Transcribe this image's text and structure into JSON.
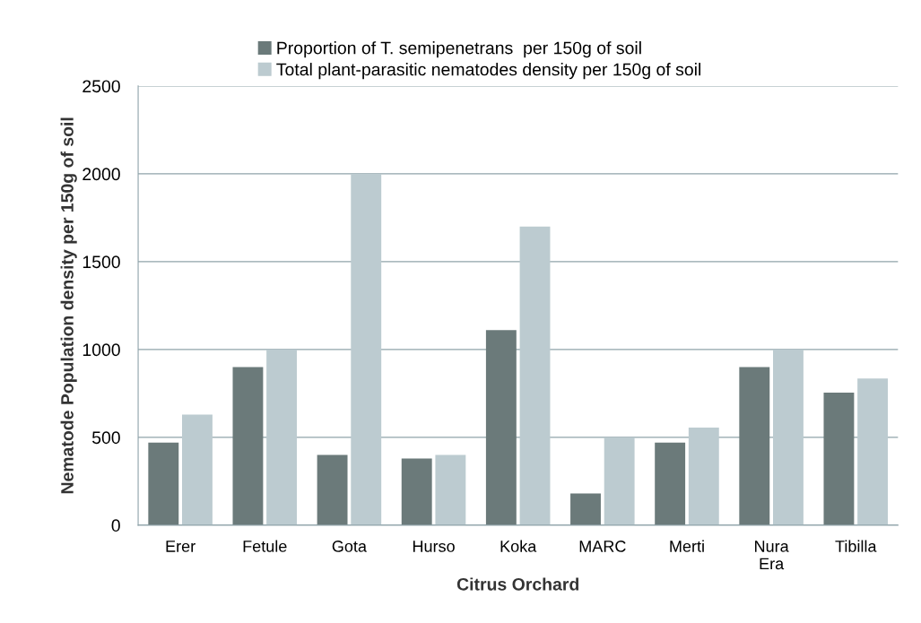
{
  "chart_data": {
    "type": "bar",
    "xlabel": "Citrus Orchard",
    "ylabel": "Nematode Population density per 150g of soil",
    "categories": [
      "Erer",
      "Fetule",
      "Gota",
      "Hurso",
      "Koka",
      "MARC",
      "Merti",
      "Nura\nEra",
      "Tibilla"
    ],
    "series": [
      {
        "name": "Proportion of T. semipenetrans  per 150g of soil",
        "color": "#6b7a7a",
        "values": [
          470,
          900,
          400,
          380,
          1110,
          180,
          470,
          900,
          755
        ]
      },
      {
        "name": "Total plant-parasitic nematodes density per 150g of soil",
        "color": "#bccbd0",
        "values": [
          630,
          1000,
          2000,
          400,
          1700,
          500,
          555,
          1000,
          835
        ]
      }
    ],
    "ylim": [
      0,
      2500
    ],
    "yticks": [
      0,
      500,
      1000,
      1500,
      2000,
      2500
    ],
    "grid": "y",
    "legend": "top"
  }
}
